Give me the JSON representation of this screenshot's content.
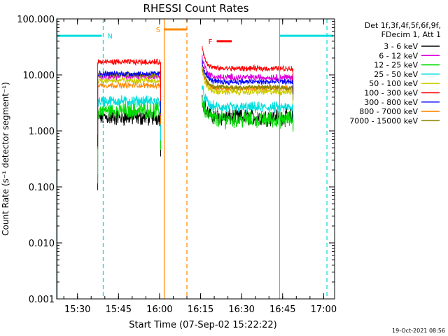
{
  "chart_data": {
    "type": "line",
    "title": "RHESSI Count Rates",
    "xlabel": "Start Time (07-Sep-02 15:22:22)",
    "ylabel": "Count Rate (s⁻¹ detector segment⁻¹)",
    "x_unit": "minutes after 15:22:22",
    "xlim": [
      0,
      101.6
    ],
    "ylim": [
      0.001,
      100
    ],
    "yscale": "log",
    "x_ticks": [
      {
        "v": 7.6,
        "label": "15:30"
      },
      {
        "v": 22.6,
        "label": "15:45"
      },
      {
        "v": 37.6,
        "label": "16:00"
      },
      {
        "v": 52.6,
        "label": "16:15"
      },
      {
        "v": 67.6,
        "label": "16:30"
      },
      {
        "v": 82.6,
        "label": "16:45"
      },
      {
        "v": 97.6,
        "label": "17:00"
      }
    ],
    "y_ticks": [
      {
        "v": 100,
        "label": "100.000"
      },
      {
        "v": 10,
        "label": "10.000"
      },
      {
        "v": 1,
        "label": "1.000"
      },
      {
        "v": 0.1,
        "label": "0.100"
      },
      {
        "v": 0.01,
        "label": "0.010"
      },
      {
        "v": 0.001,
        "label": "0.001"
      }
    ],
    "legend_header": [
      "Det 1f,3f,4f,5f,6f,9f,",
      "FDecim 1, Att 1"
    ],
    "legend_position": "right",
    "series": [
      {
        "name": "3 - 6 keV",
        "color": "#000000",
        "level_a": 1.75,
        "level_b": 1.75,
        "noise": 0.12
      },
      {
        "name": "6 - 12 keV",
        "color": "#dd00dd",
        "level_a": 9.5,
        "level_b": 9.0,
        "noise": 0.05
      },
      {
        "name": "12 - 25 keV",
        "color": "#00dd00",
        "level_a": 2.3,
        "level_b": 1.6,
        "noise": 0.12
      },
      {
        "name": "25 - 50 keV",
        "color": "#00dddd",
        "level_a": 3.4,
        "level_b": 2.6,
        "noise": 0.08
      },
      {
        "name": "50 - 100 keV",
        "color": "#cccc00",
        "level_a": 8.0,
        "level_b": 5.0,
        "noise": 0.05
      },
      {
        "name": "100 - 300 keV",
        "color": "#ff0000",
        "level_a": 17.0,
        "level_b": 13.0,
        "noise": 0.04
      },
      {
        "name": "300 - 800 keV",
        "color": "#0000ff",
        "level_a": 10.5,
        "level_b": 7.5,
        "noise": 0.04
      },
      {
        "name": "800 - 7000 keV",
        "color": "#ff8800",
        "level_a": 6.5,
        "level_b": 5.8,
        "noise": 0.04
      },
      {
        "name": "7000 - 15000 keV",
        "color": "#888800",
        "level_a": 10.0,
        "level_b": 6.0,
        "noise": 0.04
      }
    ],
    "data_segments": [
      [
        15.0,
        38.0
      ],
      [
        53.2,
        86.4
      ]
    ],
    "night_intervals": [
      {
        "label": "N",
        "x_start": 0,
        "x_end": 17.0,
        "level": 50
      },
      {
        "label": "",
        "x_start": 81.5,
        "x_end": 101.6,
        "level": 50
      }
    ],
    "saa_interval": {
      "label": "S",
      "x_start": 39.3,
      "x_end": 47.6,
      "level": 65
    },
    "flare_interval": {
      "label": "F",
      "x_start": 58.5,
      "x_end": 64.0,
      "level": 40
    },
    "vertical_markers": [
      {
        "x": 0.2,
        "color": "#00dddd",
        "style": "solid"
      },
      {
        "x": 17.0,
        "color": "#00dddd",
        "style": "dashed"
      },
      {
        "x": 39.3,
        "color": "#ff8800",
        "style": "solid"
      },
      {
        "x": 47.6,
        "color": "#ff8800",
        "style": "dashed"
      },
      {
        "x": 81.5,
        "color": "#00dddd",
        "style": "solid"
      },
      {
        "x": 98.8,
        "color": "#00dddd",
        "style": "dashed"
      }
    ]
  },
  "footer": {
    "timestamp": "19-Oct-2021 08:56"
  }
}
